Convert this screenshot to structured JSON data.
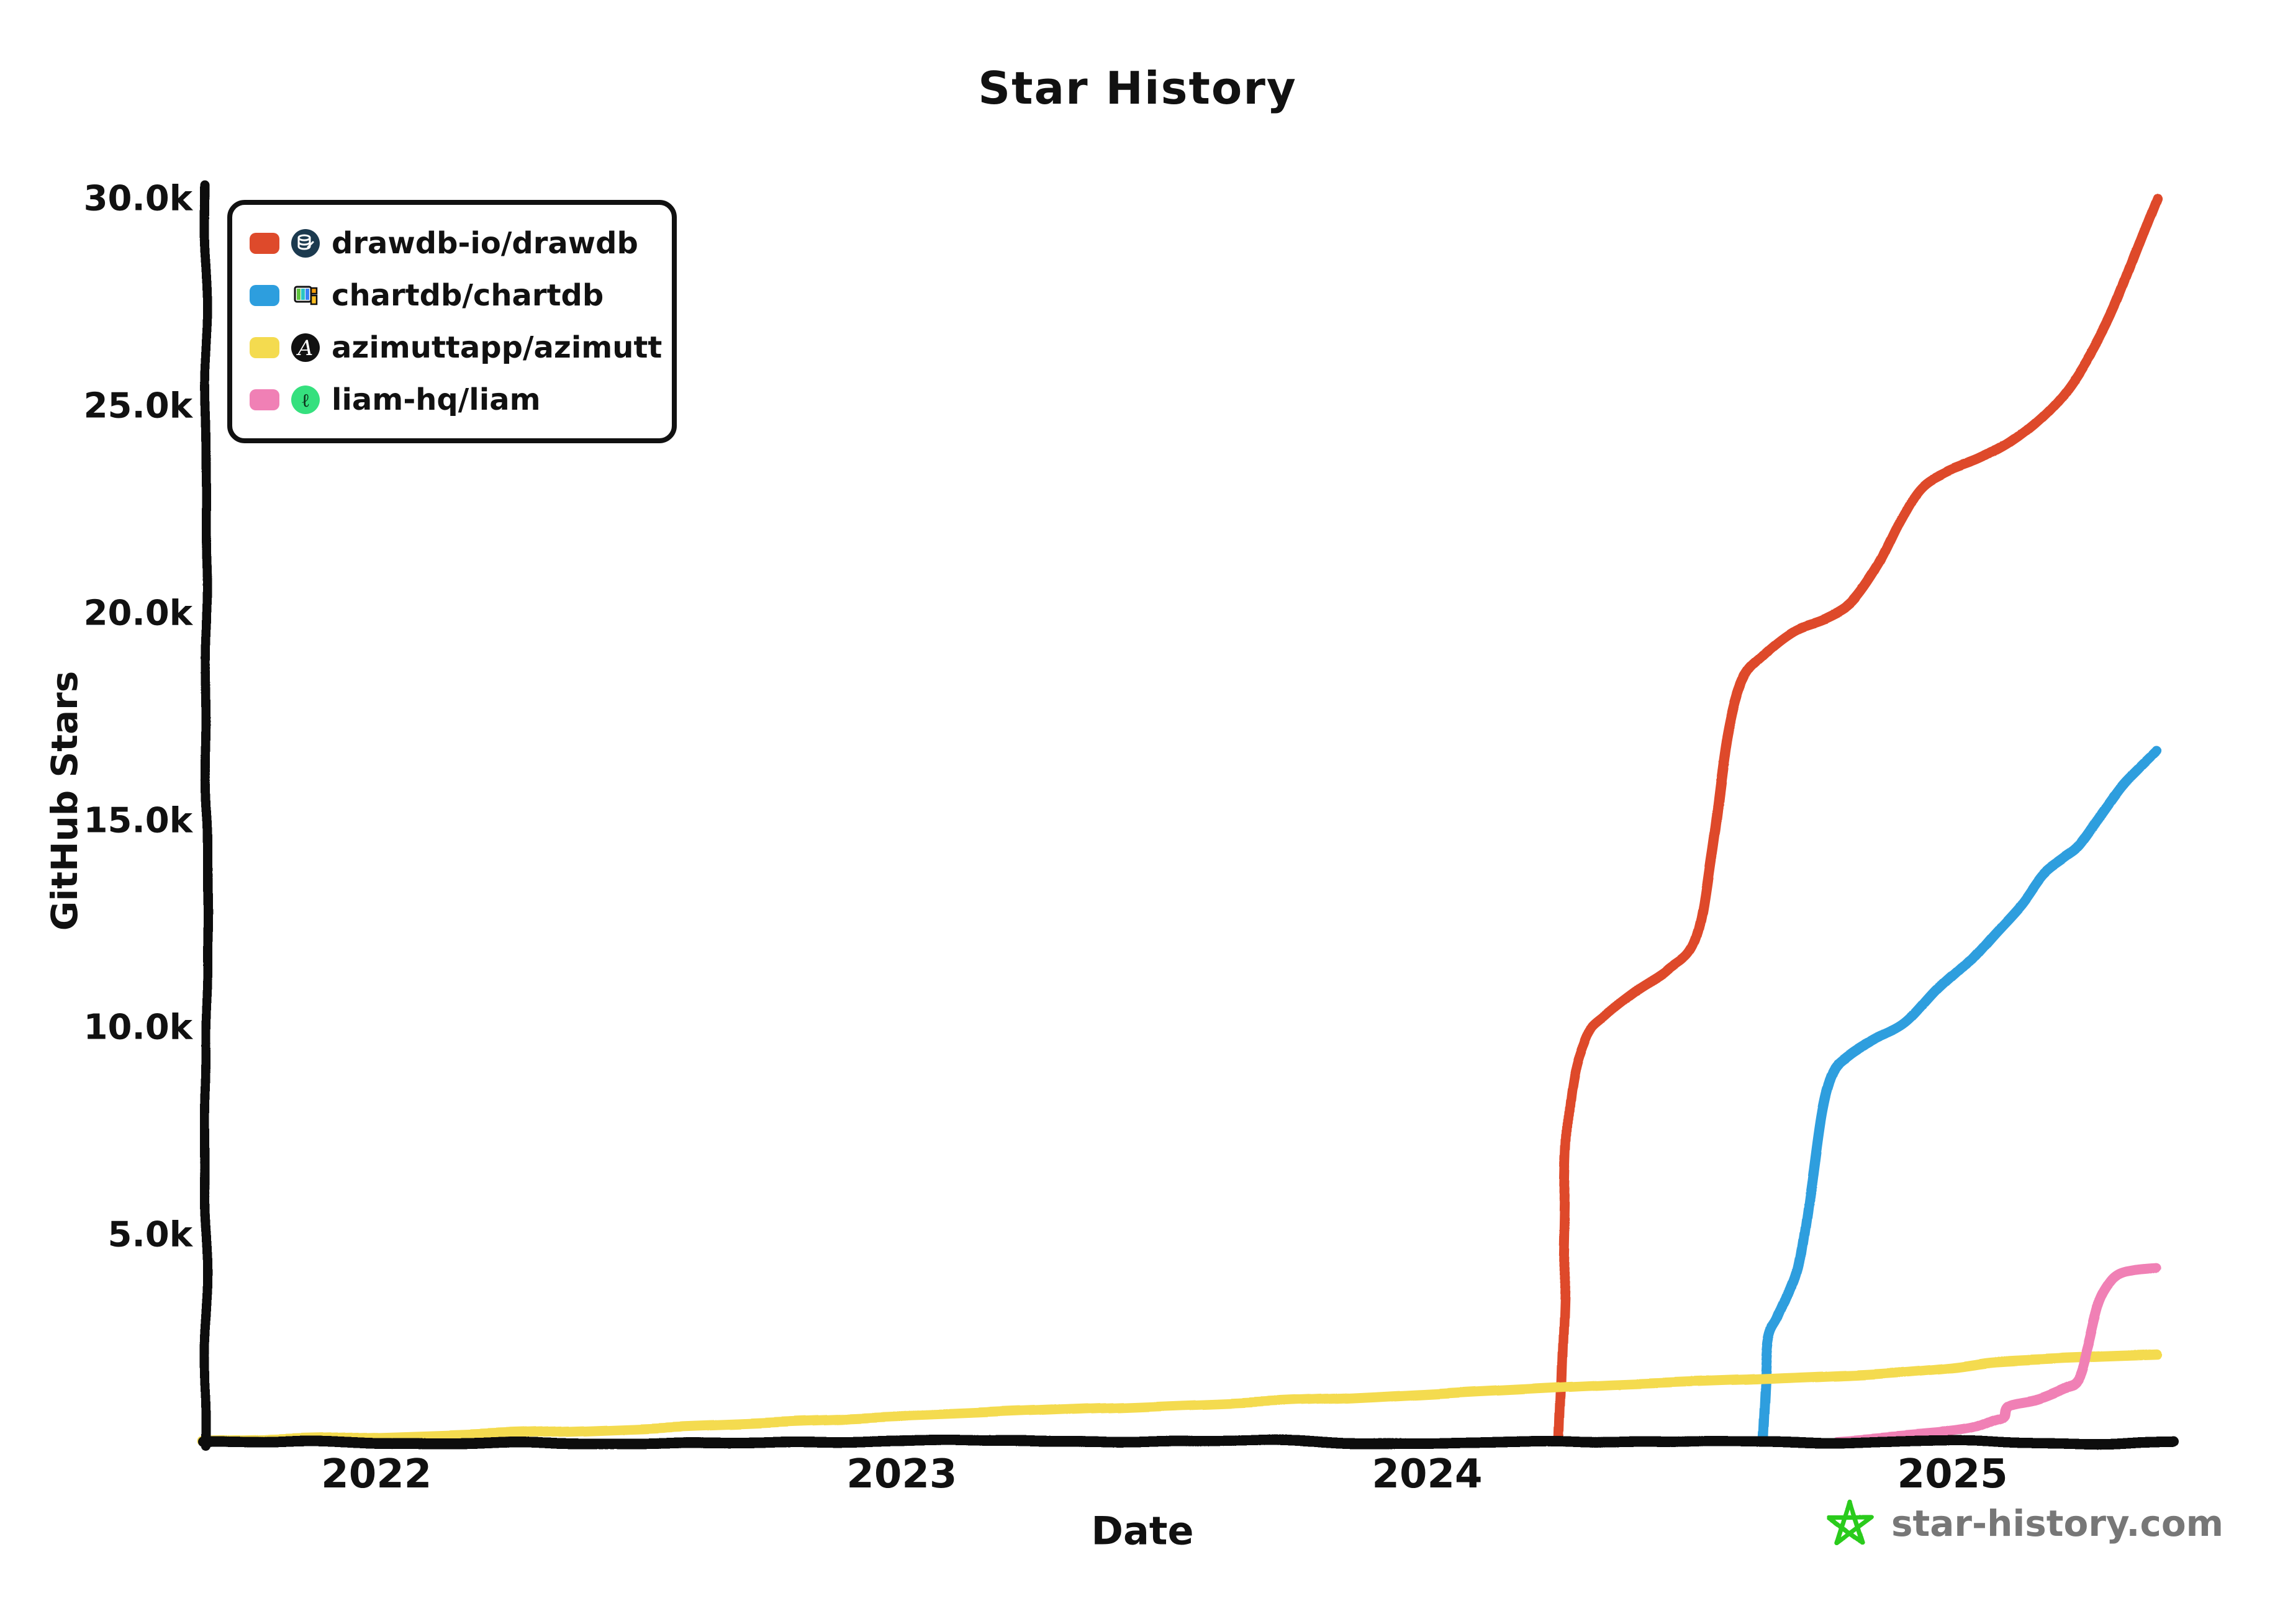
{
  "title": "Star History",
  "y_axis": {
    "label": "GitHub Stars",
    "ticks": [
      {
        "value": 5000,
        "label": "5.0k"
      },
      {
        "value": 10000,
        "label": "10.0k"
      },
      {
        "value": 15000,
        "label": "15.0k"
      },
      {
        "value": 20000,
        "label": "20.0k"
      },
      {
        "value": 25000,
        "label": "25.0k"
      },
      {
        "value": 30000,
        "label": "30.0k"
      }
    ]
  },
  "x_axis": {
    "label": "Date",
    "ticks": [
      {
        "value": 2022,
        "label": "2022"
      },
      {
        "value": 2023,
        "label": "2023"
      },
      {
        "value": 2024,
        "label": "2024"
      },
      {
        "value": 2025,
        "label": "2025"
      }
    ]
  },
  "footer": {
    "site": "star-history.com",
    "star_color": "#2CCB1A",
    "text_color": "#777777"
  },
  "colors": {
    "axis": "#111111",
    "background": "#ffffff"
  },
  "chart_data": {
    "type": "line",
    "title": "Star History",
    "xlabel": "Date",
    "ylabel": "GitHub Stars",
    "x_range_years": [
      2021.67,
      2025.42
    ],
    "ylim": [
      0,
      30000
    ],
    "grid": false,
    "legend_position": "top-left",
    "series": [
      {
        "name": "drawdb-io/drawdb",
        "color": "#DE4A2B",
        "icon": "drawdb-database-icon",
        "points": [
          [
            2024.25,
            0
          ],
          [
            2024.26,
            4000
          ],
          [
            2024.27,
            8000
          ],
          [
            2024.3,
            9700
          ],
          [
            2024.34,
            10300
          ],
          [
            2024.4,
            10900
          ],
          [
            2024.46,
            11400
          ],
          [
            2024.51,
            12100
          ],
          [
            2024.54,
            14200
          ],
          [
            2024.57,
            17000
          ],
          [
            2024.6,
            18400
          ],
          [
            2024.64,
            19000
          ],
          [
            2024.7,
            19600
          ],
          [
            2024.76,
            19900
          ],
          [
            2024.81,
            20300
          ],
          [
            2024.86,
            21200
          ],
          [
            2024.9,
            22200
          ],
          [
            2024.94,
            23000
          ],
          [
            2024.99,
            23400
          ],
          [
            2025.05,
            23700
          ],
          [
            2025.11,
            24100
          ],
          [
            2025.17,
            24700
          ],
          [
            2025.22,
            25400
          ],
          [
            2025.27,
            26400
          ],
          [
            2025.31,
            27400
          ],
          [
            2025.35,
            28700
          ],
          [
            2025.39,
            30000
          ]
        ]
      },
      {
        "name": "chartdb/chartdb",
        "color": "#2D9EDE",
        "icon": "chartdb-flag-icon",
        "points": [
          [
            2024.64,
            0
          ],
          [
            2024.65,
            2300
          ],
          [
            2024.67,
            3000
          ],
          [
            2024.69,
            3600
          ],
          [
            2024.71,
            4400
          ],
          [
            2024.73,
            6200
          ],
          [
            2024.75,
            8000
          ],
          [
            2024.77,
            8900
          ],
          [
            2024.8,
            9300
          ],
          [
            2024.85,
            9700
          ],
          [
            2024.91,
            10100
          ],
          [
            2024.97,
            10900
          ],
          [
            2025.03,
            11600
          ],
          [
            2025.08,
            12300
          ],
          [
            2025.13,
            13000
          ],
          [
            2025.17,
            13700
          ],
          [
            2025.21,
            14100
          ],
          [
            2025.24,
            14400
          ],
          [
            2025.28,
            15100
          ],
          [
            2025.32,
            15800
          ],
          [
            2025.35,
            16200
          ],
          [
            2025.39,
            16700
          ]
        ]
      },
      {
        "name": "azimuttapp/azimutt",
        "color": "#F4DB4F",
        "icon": "azimutt-a-icon",
        "points": [
          [
            2021.67,
            20
          ],
          [
            2021.9,
            90
          ],
          [
            2022.1,
            170
          ],
          [
            2022.4,
            300
          ],
          [
            2022.7,
            450
          ],
          [
            2023.0,
            600
          ],
          [
            2023.3,
            760
          ],
          [
            2023.6,
            910
          ],
          [
            2023.9,
            1080
          ],
          [
            2024.1,
            1220
          ],
          [
            2024.35,
            1380
          ],
          [
            2024.6,
            1500
          ],
          [
            2024.85,
            1640
          ],
          [
            2025.0,
            1800
          ],
          [
            2025.08,
            1930
          ],
          [
            2025.18,
            2000
          ],
          [
            2025.28,
            2050
          ],
          [
            2025.39,
            2100
          ]
        ]
      },
      {
        "name": "liam-hq/liam",
        "color": "#F080B5",
        "icon": "liam-l-icon",
        "points": [
          [
            2024.78,
            30
          ],
          [
            2024.88,
            120
          ],
          [
            2024.98,
            220
          ],
          [
            2025.04,
            330
          ],
          [
            2025.08,
            520
          ],
          [
            2025.1,
            620
          ],
          [
            2025.11,
            900
          ],
          [
            2025.16,
            1050
          ],
          [
            2025.21,
            1300
          ],
          [
            2025.24,
            1500
          ],
          [
            2025.26,
            2300
          ],
          [
            2025.28,
            3300
          ],
          [
            2025.3,
            3800
          ],
          [
            2025.32,
            4050
          ],
          [
            2025.35,
            4150
          ],
          [
            2025.39,
            4200
          ]
        ]
      }
    ]
  }
}
